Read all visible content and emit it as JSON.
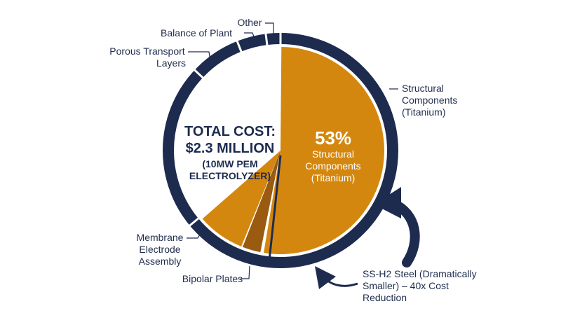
{
  "chart_data": {
    "type": "pie",
    "total_label": {
      "line1": "TOTAL COST:",
      "line2": "$2.3 MILLION",
      "line3": "(10MW PEM",
      "line4": "ELECTROLYZER)"
    },
    "highlight": {
      "percent_label": "53%",
      "name_line1": "Structural",
      "name_line2": "Components",
      "name_line3": "(Titanium)"
    },
    "segments": [
      {
        "label_lines": [
          "Structural",
          "Components",
          "(Titanium)"
        ],
        "value": 53
      },
      {
        "label_lines": [
          "SS-H2 Steel (Dramatically",
          "Smaller) – 40x Cost",
          "Reduction"
        ],
        "value": 3
      },
      {
        "label_lines": [
          "Bipolar Plates"
        ],
        "value": 8
      },
      {
        "label_lines": [
          "Membrane",
          "Electrode",
          "Assembly"
        ],
        "value": 23
      },
      {
        "label_lines": [
          "Porous Transport",
          "Layers"
        ],
        "value": 7
      },
      {
        "label_lines": [
          "Balance of Plant"
        ],
        "value": 4
      },
      {
        "label_lines": [
          "Other"
        ],
        "value": 2
      }
    ],
    "colors": {
      "ring": "#1d2b4f",
      "highlight": "#d4870f",
      "steel": "#9a5a10",
      "background": "#ffffff"
    }
  }
}
